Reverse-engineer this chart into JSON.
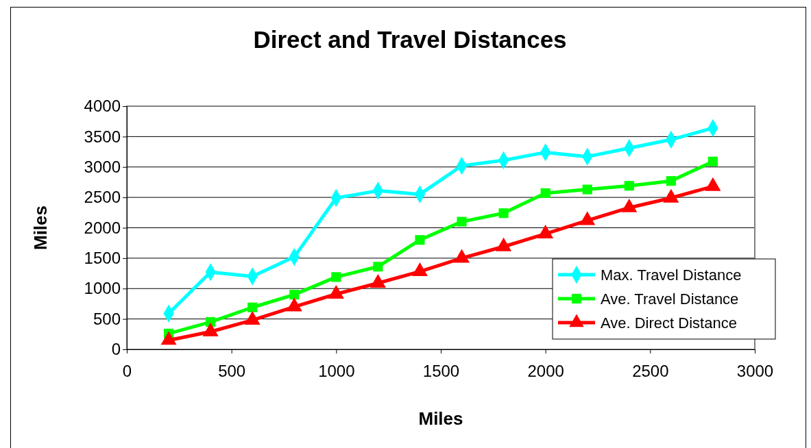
{
  "chart_data": {
    "type": "line",
    "title": "Direct and Travel Distances",
    "xlabel": "Miles",
    "ylabel": "Miles",
    "x": [
      200,
      400,
      600,
      800,
      1000,
      1200,
      1400,
      1600,
      1800,
      2000,
      2200,
      2400,
      2600,
      2800
    ],
    "series": [
      {
        "name": "Max. Travel Distance",
        "color": "#00ffff",
        "marker": "diamond",
        "values": [
          590,
          1270,
          1200,
          1520,
          2490,
          2610,
          2550,
          3020,
          3110,
          3240,
          3170,
          3310,
          3450,
          3640
        ]
      },
      {
        "name": "Ave. Travel Distance",
        "color": "#00ff00",
        "marker": "square",
        "values": [
          260,
          450,
          690,
          900,
          1190,
          1360,
          1800,
          2100,
          2240,
          2570,
          2630,
          2690,
          2770,
          3090
        ]
      },
      {
        "name": "Ave. Direct Distance",
        "color": "#ff0000",
        "marker": "triangle",
        "values": [
          150,
          290,
          480,
          700,
          910,
          1090,
          1280,
          1500,
          1690,
          1900,
          2120,
          2330,
          2490,
          2680
        ]
      }
    ],
    "xlim": [
      0,
      3000
    ],
    "xticks": [
      0,
      500,
      1000,
      1500,
      2000,
      2500,
      3000
    ],
    "ylim": [
      0,
      4000
    ],
    "yticks": [
      0,
      500,
      1000,
      1500,
      2000,
      2500,
      3000,
      3500,
      4000
    ],
    "grid": "y",
    "legend": "bottom right",
    "line_style": "solid"
  }
}
